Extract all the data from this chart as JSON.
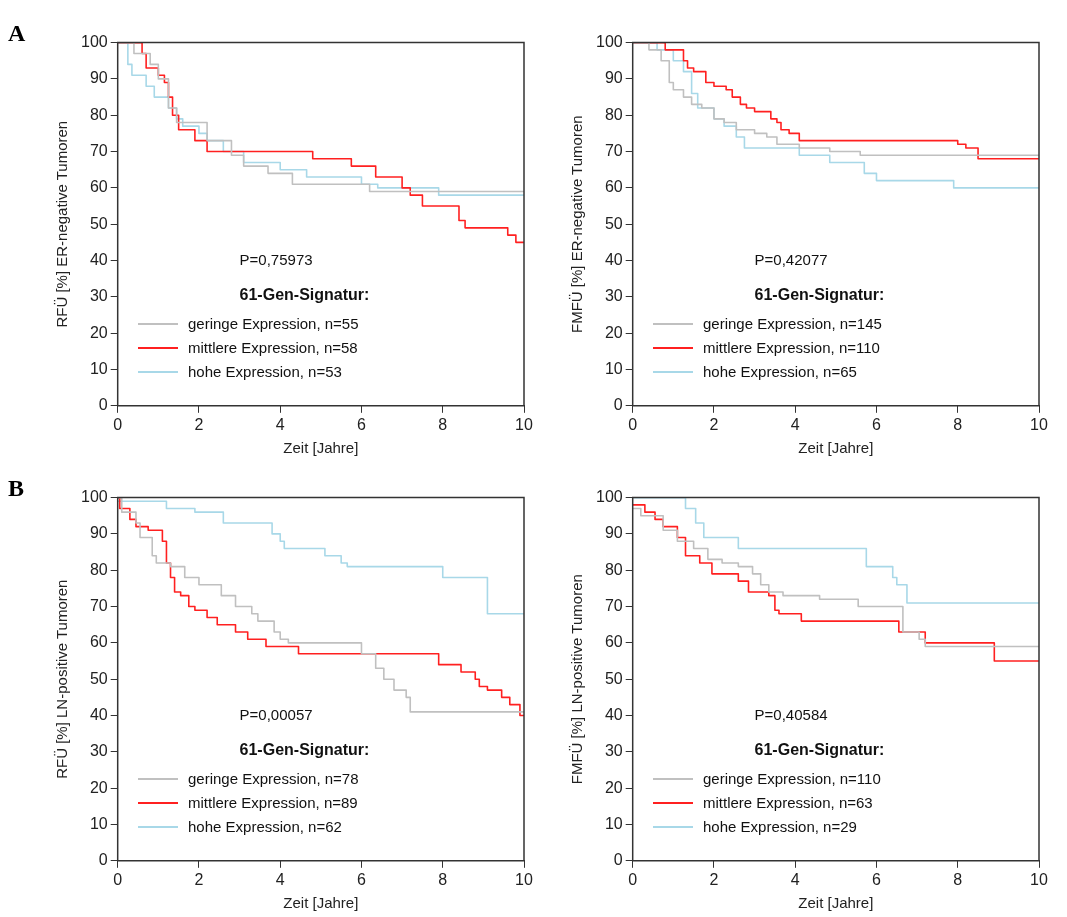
{
  "chart_data": [
    {
      "type": "step",
      "title": "A",
      "xlabel": "Zeit [Jahre]",
      "ylabel": "RFÜ [%] ER-negative Tumoren",
      "xlim": [
        0,
        10
      ],
      "xticks": [
        0,
        2,
        4,
        6,
        8,
        10
      ],
      "ylim": [
        0,
        100
      ],
      "yticks": [
        0,
        10,
        20,
        30,
        40,
        50,
        60,
        70,
        80,
        90,
        100
      ],
      "grid": false,
      "legend": "bottom",
      "legend_title": "61-Gen-Signatur:",
      "annotations": [
        "P=0,75973"
      ],
      "series": [
        {
          "name": "geringe Expression, n=55",
          "color": "#c0c0c0",
          "x": [
            0,
            0.4,
            0.8,
            1.0,
            1.25,
            1.45,
            2.2,
            2.8,
            3.1,
            3.7,
            4.3,
            6.2,
            10
          ],
          "values": [
            100,
            97,
            94,
            90,
            82,
            78,
            73,
            69,
            66,
            64,
            61,
            59,
            59
          ]
        },
        {
          "name": "mittlere Expression, n=58",
          "color": "#ff2020",
          "x": [
            0,
            0.6,
            0.7,
            1.0,
            1.15,
            1.25,
            1.35,
            1.5,
            1.9,
            2.2,
            4.8,
            5.75,
            6.35,
            7.0,
            7.2,
            7.5,
            8.4,
            8.55,
            9.6,
            9.8,
            10
          ],
          "values": [
            100,
            97,
            93,
            91,
            89,
            85,
            80,
            76,
            73,
            70,
            68,
            66,
            63,
            60,
            58,
            55,
            51,
            49,
            47,
            45,
            45
          ]
        },
        {
          "name": "hohe Expression, n=53",
          "color": "#a8d8e8",
          "x": [
            0,
            0.25,
            0.35,
            0.7,
            0.9,
            1.25,
            1.45,
            1.6,
            2.0,
            2.2,
            2.6,
            3.1,
            4.0,
            4.65,
            6.0,
            6.4,
            7.9,
            10
          ],
          "values": [
            100,
            94,
            91,
            88,
            85,
            82,
            79,
            77,
            75,
            73,
            70,
            67,
            65,
            63,
            61,
            60,
            58,
            58
          ]
        }
      ]
    },
    {
      "type": "step",
      "xlabel": "Zeit [Jahre]",
      "ylabel": "FMFÜ [%] ER-negative Tumoren",
      "xlim": [
        0,
        10
      ],
      "xticks": [
        0,
        2,
        4,
        6,
        8,
        10
      ],
      "ylim": [
        0,
        100
      ],
      "yticks": [
        0,
        10,
        20,
        30,
        40,
        50,
        60,
        70,
        80,
        90,
        100
      ],
      "grid": false,
      "legend": "bottom",
      "legend_title": "61-Gen-Signatur:",
      "annotations": [
        "P=0,42077"
      ],
      "series": [
        {
          "name": "geringe Expression, n=145",
          "color": "#c0c0c0",
          "x": [
            0,
            0.4,
            0.7,
            0.9,
            1.0,
            1.25,
            1.45,
            1.7,
            2.0,
            2.25,
            2.55,
            3.0,
            3.3,
            3.55,
            4.1,
            4.85,
            5.6,
            10
          ],
          "values": [
            100,
            98,
            95,
            89,
            87,
            85,
            83,
            82,
            79,
            78,
            76,
            75,
            74,
            72,
            71,
            70,
            69,
            69
          ]
        },
        {
          "name": "mittlere Expression, n=110",
          "color": "#ff2020",
          "x": [
            0,
            0.8,
            1.25,
            1.35,
            1.5,
            1.8,
            2.0,
            2.3,
            2.45,
            2.65,
            2.8,
            3.0,
            3.4,
            3.55,
            3.65,
            3.85,
            4.1,
            8.0,
            8.2,
            8.5,
            10
          ],
          "values": [
            100,
            98,
            95,
            93,
            92,
            89,
            88,
            87,
            85,
            83,
            82,
            81,
            79,
            78,
            76,
            75,
            73,
            72,
            71,
            68,
            68
          ]
        },
        {
          "name": "hohe Expression, n=65",
          "color": "#a8d8e8",
          "x": [
            0,
            0.6,
            1.0,
            1.25,
            1.45,
            1.6,
            2.0,
            2.25,
            2.55,
            2.75,
            4.1,
            4.85,
            5.7,
            6.0,
            7.9,
            10
          ],
          "values": [
            100,
            98,
            95,
            92,
            86,
            82,
            79,
            77,
            74,
            71,
            69,
            67,
            64,
            62,
            60,
            60
          ]
        }
      ]
    },
    {
      "type": "step",
      "title": "B",
      "xlabel": "Zeit [Jahre]",
      "ylabel": "RFÜ [%] LN-positive Tumoren",
      "xlim": [
        0,
        10
      ],
      "xticks": [
        0,
        2,
        4,
        6,
        8,
        10
      ],
      "ylim": [
        0,
        100
      ],
      "yticks": [
        0,
        10,
        20,
        30,
        40,
        50,
        60,
        70,
        80,
        90,
        100
      ],
      "grid": false,
      "legend": "bottom",
      "legend_title": "61-Gen-Signatur:",
      "annotations": [
        "P=0,00057"
      ],
      "series": [
        {
          "name": "geringe Expression, n=78",
          "color": "#c0c0c0",
          "x": [
            0,
            0.1,
            0.45,
            0.55,
            0.85,
            0.95,
            1.3,
            1.65,
            2.0,
            2.55,
            2.9,
            3.3,
            3.45,
            3.85,
            4.0,
            4.2,
            6.0,
            6.35,
            6.55,
            6.8,
            7.1,
            7.2,
            10
          ],
          "values": [
            100,
            96,
            93,
            89,
            84,
            82,
            81,
            78,
            76,
            73,
            70,
            68,
            66,
            63,
            61,
            60,
            57,
            53,
            50,
            47,
            45,
            41,
            41
          ]
        },
        {
          "name": "mittlere Expression, n=89",
          "color": "#ff2020",
          "x": [
            0,
            0.05,
            0.3,
            0.45,
            0.75,
            1.1,
            1.2,
            1.3,
            1.4,
            1.55,
            1.75,
            1.9,
            2.2,
            2.45,
            2.9,
            3.2,
            3.65,
            4.45,
            7.9,
            8.45,
            8.8,
            8.9,
            9.1,
            9.45,
            9.65,
            9.9,
            10
          ],
          "values": [
            100,
            97,
            94,
            92,
            91,
            88,
            82,
            78,
            74,
            73,
            70,
            69,
            67,
            65,
            63,
            61,
            59,
            57,
            54,
            52,
            50,
            48,
            47,
            45,
            43,
            40,
            40
          ]
        },
        {
          "name": "hohe Expression, n=62",
          "color": "#a8d8e8",
          "x": [
            0,
            1.2,
            1.9,
            2.6,
            3.8,
            4.0,
            4.1,
            5.1,
            5.5,
            5.65,
            8.0,
            9.1,
            10
          ],
          "values": [
            99,
            97,
            96,
            93,
            90,
            88,
            86,
            84,
            82,
            81,
            78,
            68,
            68
          ]
        }
      ]
    },
    {
      "type": "step",
      "xlabel": "Zeit [Jahre]",
      "ylabel": "FMFÜ [%] LN-positive Tumoren",
      "xlim": [
        0,
        10
      ],
      "xticks": [
        0,
        2,
        4,
        6,
        8,
        10
      ],
      "ylim": [
        0,
        100
      ],
      "yticks": [
        0,
        10,
        20,
        30,
        40,
        50,
        60,
        70,
        80,
        90,
        100
      ],
      "grid": false,
      "legend": "bottom",
      "legend_title": "61-Gen-Signatur:",
      "annotations": [
        "P=0,40584"
      ],
      "series": [
        {
          "name": "geringe Expression, n=110",
          "color": "#c0c0c0",
          "x": [
            0,
            0.2,
            0.75,
            1.1,
            1.5,
            1.85,
            2.2,
            2.6,
            2.95,
            3.15,
            3.35,
            3.7,
            4.6,
            5.55,
            6.65,
            7.05,
            7.2,
            10
          ],
          "values": [
            97,
            95,
            91,
            88,
            86,
            83,
            82,
            81,
            79,
            76,
            74,
            73,
            72,
            70,
            63,
            61,
            59,
            59
          ]
        },
        {
          "name": "mittlere Expression, n=63",
          "color": "#ff2020",
          "x": [
            0,
            0.3,
            0.55,
            0.75,
            1.1,
            1.3,
            1.65,
            1.95,
            2.6,
            2.85,
            3.35,
            3.5,
            3.6,
            4.15,
            6.55,
            7.2,
            8.9,
            10
          ],
          "values": [
            98,
            96,
            94,
            92,
            89,
            84,
            82,
            79,
            77,
            74,
            73,
            69,
            68,
            66,
            63,
            60,
            55,
            55
          ]
        },
        {
          "name": "hohe Expression, n=29",
          "color": "#a8d8e8",
          "x": [
            0,
            1.3,
            1.55,
            1.75,
            2.6,
            5.75,
            6.4,
            6.5,
            6.75,
            10
          ],
          "values": [
            100,
            97,
            93,
            89,
            86,
            81,
            78,
            76,
            71,
            71
          ]
        }
      ]
    }
  ]
}
